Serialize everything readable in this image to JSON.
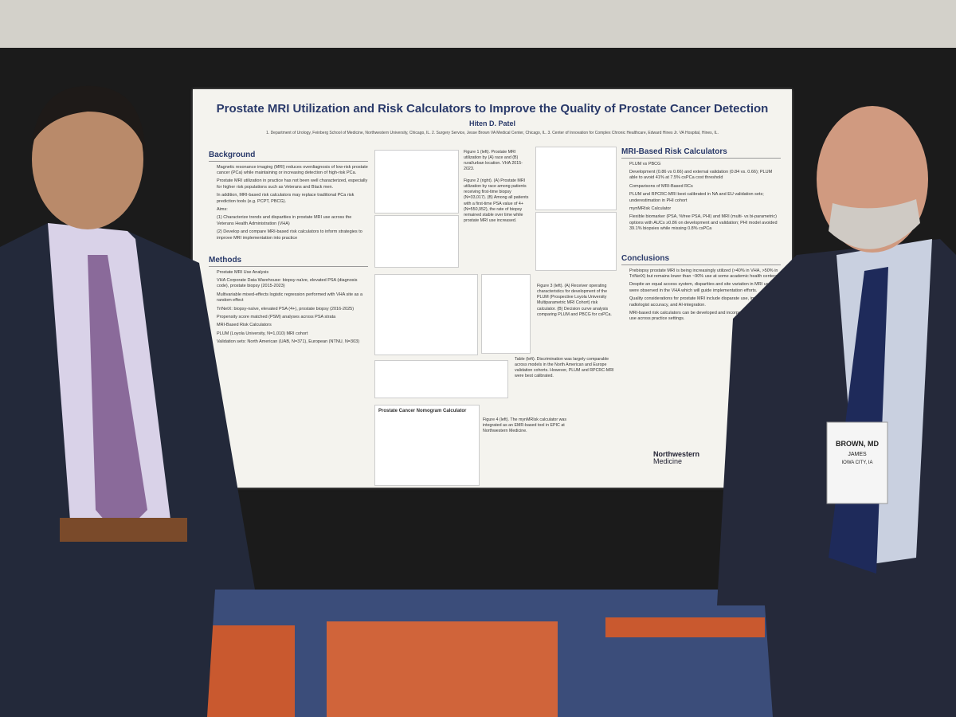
{
  "poster": {
    "title": "Prostate MRI Utilization and Risk Calculators to Improve the Quality of Prostate Cancer Detection",
    "author": "Hiten D. Patel",
    "affiliations": "1. Department of Urology, Feinberg School of Medicine, Northwestern University, Chicago, IL. 2. Surgery Service, Jesse Brown VA Medical Center, Chicago, IL. 3. Center of Innovation for Complex Chronic Healthcare, Edward Hines Jr. VA Hospital, Hines, IL.",
    "sections": [
      {
        "heading": "Background",
        "items": [
          "Magnetic resonance imaging (MRI) reduces overdiagnosis of low-risk prostate cancer (PCa) while maintaining or increasing detection of high-risk PCa.",
          "Prostate MRI utilization in practice has not been well characterized, especially for higher risk populations such as Veterans and Black men.",
          "In addition, MRI-based risk calculators may replace traditional PCa risk prediction tools (e.g. PCPT, PBCG).",
          "Aims:",
          "(1) Characterize trends and disparities in prostate MRI use across the Veterans Health Administration (VHA)",
          "(2) Develop and compare MRI-based risk calculators to inform strategies to improve MRI implementation into practice"
        ]
      },
      {
        "heading": "Methods",
        "items": [
          "Prostate MRI Use Analysis",
          "VHA Corporate Data Warehouse: biopsy-naïve, elevated PSA (diagnosis code), prostate biopsy (2015-2023)",
          "Multivariable mixed-effects logistic regression performed with VHA site as a random effect",
          "TriNetX: biopsy-naïve, elevated PSA (4+), prostate biopsy (2016-2025)",
          "Propensity score matched (PSM) analyses across PSA strata",
          "MRI-Based Risk Calculators",
          "PLUM (Loyola University, N=1,010) MRI cohort",
          "Validation sets: North American (UAB, N=371), European (NTNU, N=303)"
        ]
      },
      {
        "heading": "MRI-Based Risk Calculators",
        "items": [
          "PLUM vs PBCG",
          "Development (0.86 vs 0.66) and external validation (0.84 vs. 0.66); PLUM able to avoid 41% at 7.5% csPCa cost threshold",
          "Comparisons of MRI-Based RCs",
          "PLUM and RPCRC-MRI best calibrated in NA and EU validation sets; underestimation in PHI cohort",
          "mynMRIsk Calculator",
          "Flexible biomarker (PSA, %free PSA, PHI) and MRI (multi- vs bi-parametric) options with AUCs ≥0.86 on development and validation; PHI model avoided 39.1% biopsies while missing 0.8% csPCa"
        ]
      },
      {
        "heading": "Conclusions",
        "items": [
          "Prebiopsy prostate MRI is being increasingly utilized (>40% in VHA, >50% in TriNetX) but remains lower than ~90% use at some academic health centers.",
          "Despite an equal access system, disparities and site variation in MRI use were observed in the VHA which will guide implementation efforts.",
          "Quality considerations for prostate MRI include disparate use, imaging quality, radiologist accuracy, and AI-integration.",
          "MRI-based risk calculators can be developed and incorporate biomarkers for use across practice settings."
        ]
      }
    ],
    "captions": [
      "Figure 1 (left). Prostate MRI utilization by (A) race and (B) rural/urban location. VHA 2015-2023.",
      "Figure 2 (right). (A) Prostate MRI utilization by race among patients receiving first-time biopsy (N=33,017). (B) Among all patients with a first-time PSA value of 4+ (N=550,952), the rate of biopsy remained stable over time while prostate MRI use increased.",
      "Figure 3 (left). (A) Receiver operating characteristics for development of the PLUM (Prospective Loyola University Multiparametric MRI Cohort) risk calculator. (B) Decision curve analysis comparing PLUM and PBCG for csPCa.",
      "Table (left). Discrimination was largely comparable across models in the North American and Europe validation cohorts. However, PLUM and RPCRC-MRI were best calibrated.",
      "Figure 4 (left). The mynMRIsk calculator was integrated as an EMR-based tool in EPIC at Northwestern Medicine."
    ],
    "panel_title": "Prostate Cancer Nomogram Calculator",
    "logo": [
      "Northwestern",
      "Medicine"
    ]
  },
  "badge": {
    "name": "BROWN, MD",
    "first_name": "JAMES",
    "location": "IOWA CITY, IA"
  }
}
